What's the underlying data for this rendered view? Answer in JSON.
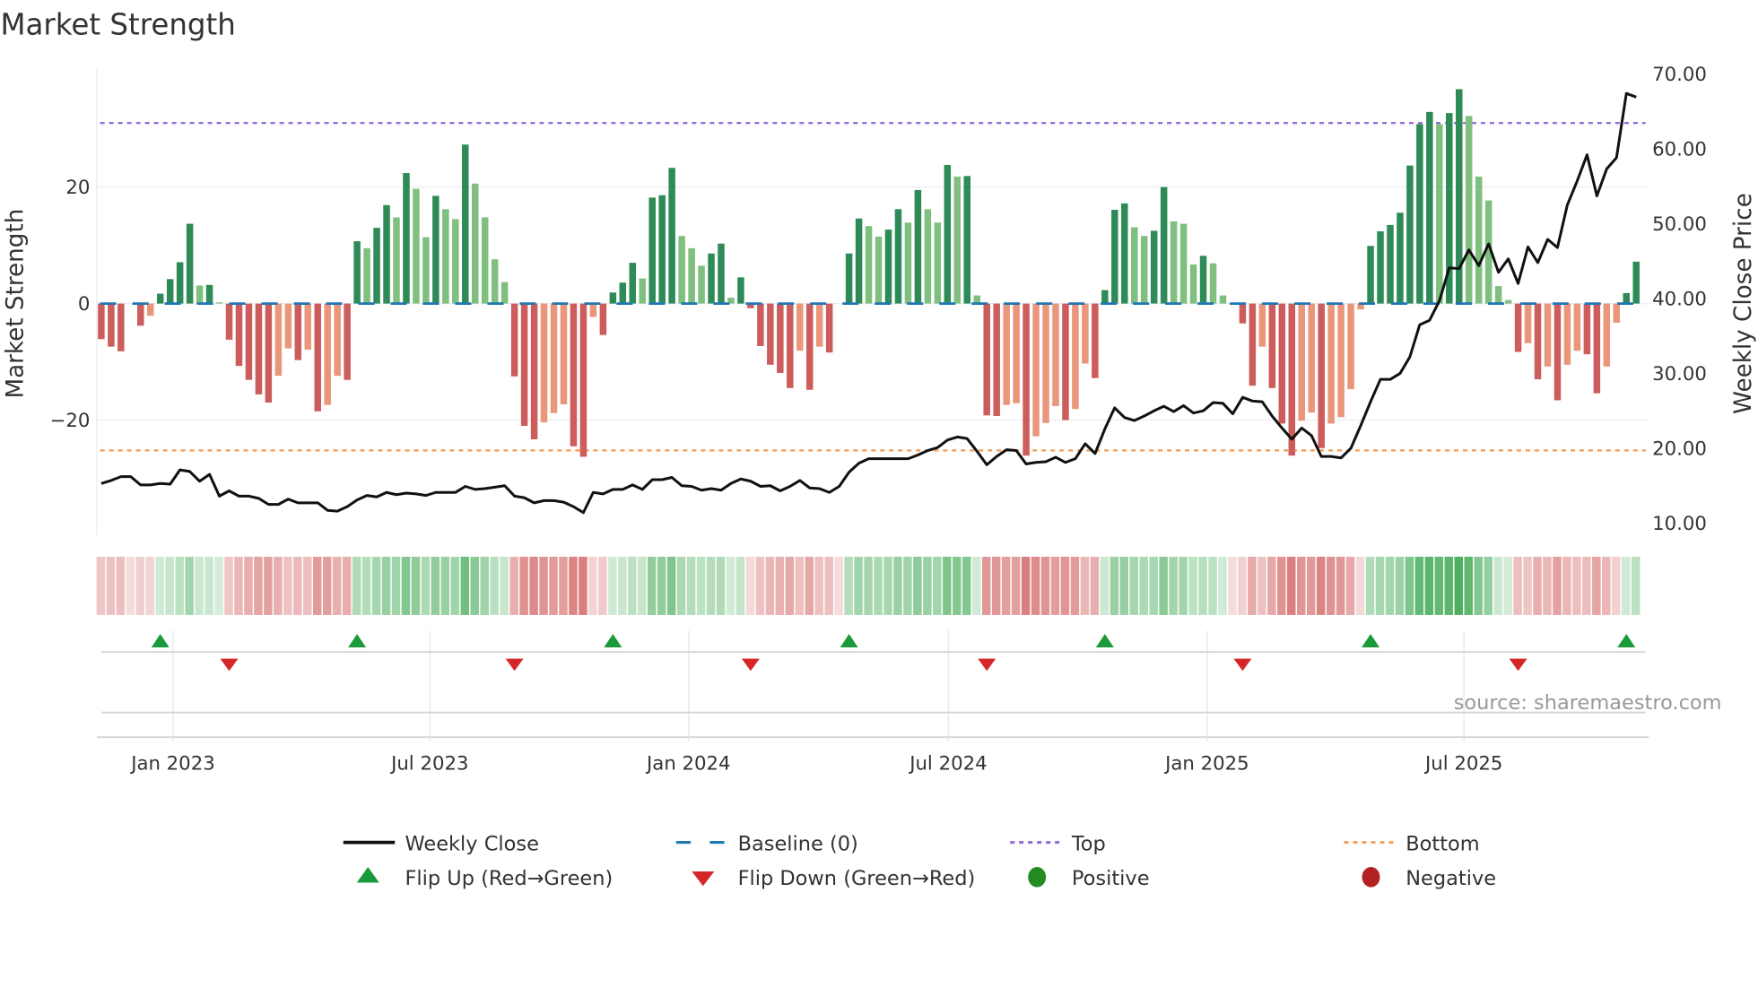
{
  "chart_data": {
    "type": "bar",
    "title": "Market Strength",
    "ylabel": "Market Strength",
    "y2label": "Weekly Close Price",
    "ylim": [
      -40,
      38
    ],
    "y2lim": [
      5,
      72
    ],
    "yticks": [
      {
        "v": 20,
        "label": "20"
      },
      {
        "v": 0,
        "label": "0"
      },
      {
        "v": -20,
        "label": "−20"
      }
    ],
    "y2ticks": [
      {
        "v": 70,
        "label": "70.00"
      },
      {
        "v": 60,
        "label": "60.00"
      },
      {
        "v": 50,
        "label": "50.00"
      },
      {
        "v": 40,
        "label": "40.00"
      },
      {
        "v": 30,
        "label": "30.00"
      },
      {
        "v": 20,
        "label": "20.00"
      },
      {
        "v": 10,
        "label": "10.00"
      }
    ],
    "xticks": [
      {
        "week": 7.3,
        "label": "Jan 2023"
      },
      {
        "week": 33.4,
        "label": "Jul 2023"
      },
      {
        "week": 59.7,
        "label": "Jan 2024"
      },
      {
        "week": 86.1,
        "label": "Jul 2024"
      },
      {
        "week": 112.4,
        "label": "Jan 2025"
      },
      {
        "week": 138.5,
        "label": "Jul 2025"
      }
    ],
    "top_level": 31,
    "bottom_level": -25.2,
    "baseline": 0,
    "strength": [
      -6.1,
      -7.4,
      -8.2,
      0,
      -3.8,
      -2.1,
      1.7,
      4.2,
      7.1,
      13.7,
      3.1,
      3.2,
      0.2,
      -6.2,
      -10.7,
      -13.1,
      -15.6,
      -17.0,
      -12.4,
      -7.7,
      -9.7,
      -7.9,
      -18.5,
      -17.4,
      -12.4,
      -13.1,
      10.7,
      9.5,
      13.0,
      16.9,
      14.8,
      22.4,
      19.7,
      11.4,
      18.5,
      16.2,
      14.5,
      27.3,
      20.6,
      14.8,
      7.6,
      3.7,
      -12.5,
      -21.0,
      -23.3,
      -20.4,
      -18.8,
      -17.3,
      -24.5,
      -26.3,
      -2.3,
      -5.4,
      1.9,
      3.6,
      7.0,
      4.3,
      18.2,
      18.6,
      23.3,
      11.6,
      9.5,
      6.5,
      8.6,
      10.3,
      1.0,
      4.5,
      -0.8,
      -7.3,
      -10.5,
      -11.9,
      -14.5,
      -8.1,
      -14.8,
      -7.4,
      -8.4,
      0,
      8.6,
      14.6,
      13.3,
      11.5,
      12.7,
      16.2,
      13.9,
      19.5,
      16.2,
      13.9,
      23.8,
      21.8,
      21.9,
      1.4,
      -19.2,
      -19.3,
      -17.4,
      -17.1,
      -26.1,
      -22.8,
      -20.5,
      -17.6,
      -20.0,
      -18.1,
      -10.3,
      -12.8,
      2.3,
      16.1,
      17.2,
      13.1,
      11.6,
      12.5,
      20.0,
      14.1,
      13.7,
      6.7,
      8.2,
      6.9,
      1.4,
      0,
      -3.4,
      -14.1,
      -7.4,
      -14.5,
      -20.6,
      -26.1,
      -20.1,
      -18.7,
      -24.8,
      -20.6,
      -19.5,
      -14.7,
      -1.0,
      9.9,
      12.4,
      13.5,
      15.6,
      23.7,
      30.8,
      32.9,
      30.8,
      32.7,
      36.8,
      32.2,
      21.8,
      17.7,
      3.0,
      0.6,
      -8.3,
      -6.8,
      -13.0,
      -10.8,
      -16.6,
      -10.5,
      -8.1,
      -8.7,
      -15.4,
      -10.8,
      -3.3,
      1.8,
      7.2
    ],
    "weekly_close": [
      15.3,
      15.7,
      16.2,
      16.2,
      15.1,
      15.1,
      15.3,
      15.2,
      17.1,
      16.9,
      15.6,
      16.5,
      13.6,
      14.3,
      13.6,
      13.6,
      13.3,
      12.5,
      12.5,
      13.2,
      12.7,
      12.7,
      12.7,
      11.7,
      11.6,
      12.2,
      13.1,
      13.7,
      13.5,
      14.1,
      13.8,
      14.0,
      13.9,
      13.7,
      14.1,
      14.1,
      14.1,
      14.9,
      14.5,
      14.6,
      14.8,
      15.0,
      13.6,
      13.4,
      12.7,
      13.0,
      13.0,
      12.8,
      12.2,
      11.4,
      14.1,
      13.9,
      14.5,
      14.5,
      15.1,
      14.5,
      15.8,
      15.8,
      16.1,
      15.0,
      14.9,
      14.4,
      14.6,
      14.4,
      15.3,
      15.9,
      15.6,
      14.9,
      15.0,
      14.3,
      14.9,
      15.7,
      14.7,
      14.6,
      14.1,
      14.9,
      16.8,
      18.0,
      18.6,
      18.6,
      18.6,
      18.6,
      18.6,
      19.1,
      19.7,
      20.1,
      21.1,
      21.5,
      21.3,
      19.6,
      17.8,
      18.9,
      19.8,
      19.7,
      17.9,
      18.1,
      18.2,
      18.8,
      18.1,
      18.6,
      20.6,
      19.3,
      22.6,
      25.4,
      24.1,
      23.7,
      24.3,
      25.0,
      25.6,
      24.9,
      25.7,
      24.7,
      25.0,
      26.1,
      26.0,
      24.6,
      26.8,
      26.3,
      26.2,
      24.3,
      22.7,
      21.2,
      22.7,
      21.7,
      18.9,
      18.9,
      18.7,
      20.0,
      23.0,
      26.2,
      29.2,
      29.2,
      30.0,
      32.2,
      36.5,
      37.1,
      39.7,
      44.1,
      44.0,
      46.5,
      44.4,
      47.3,
      43.5,
      45.3,
      42.0,
      46.9,
      44.8,
      47.9,
      46.8,
      52.5,
      55.7,
      59.2,
      53.7,
      57.3,
      58.8,
      67.4,
      66.9
    ],
    "flip_up_weeks": [
      6,
      26,
      52,
      76,
      102,
      129,
      155
    ],
    "flip_down_weeks": [
      13,
      42,
      66,
      90,
      116,
      144
    ],
    "colors": {
      "strong_pos": "#2e8b57",
      "weak_pos": "#7fbf7f",
      "strong_neg": "#cd5c5c",
      "weak_neg": "#e9967a",
      "baseline": "#1f77b4",
      "top": "#9370db",
      "bottom": "#f4a460",
      "close": "#111111",
      "flip_up": "#1a9a3a",
      "flip_down": "#d62728",
      "positive": "#228b22",
      "negative": "#b22222"
    },
    "legend": {
      "placement": "bottom",
      "items": [
        {
          "label": "Weekly Close",
          "symbol": "line"
        },
        {
          "label": "Baseline (0)",
          "symbol": "dash"
        },
        {
          "label": "Top",
          "symbol": "dot-purple"
        },
        {
          "label": "Bottom",
          "symbol": "dot-orange"
        },
        {
          "label": "Flip Up (Red→Green)",
          "symbol": "triangle-up"
        },
        {
          "label": "Flip Down (Green→Red)",
          "symbol": "triangle-down"
        },
        {
          "label": "Positive",
          "symbol": "circle-green"
        },
        {
          "label": "Negative",
          "symbol": "circle-red"
        }
      ]
    },
    "source": "source: sharemaestro.com"
  }
}
